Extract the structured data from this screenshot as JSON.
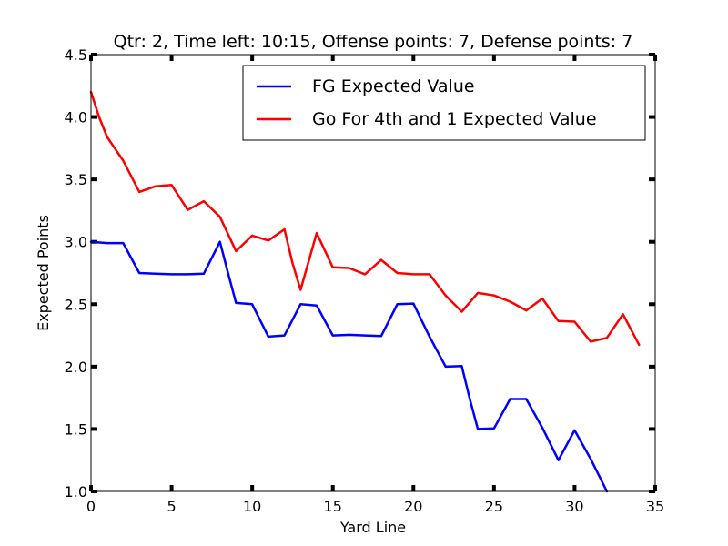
{
  "chart_data": {
    "type": "line",
    "title": "Qtr: 2, Time left: 10:15, Offense points: 7, Defense points: 7",
    "xlabel": "Yard Line",
    "ylabel": "Expected Points",
    "xlim": [
      0,
      35
    ],
    "ylim": [
      1.0,
      4.5
    ],
    "xticks": [
      0,
      5,
      10,
      15,
      20,
      25,
      30,
      35
    ],
    "yticks": [
      1.0,
      1.5,
      2.0,
      2.5,
      3.0,
      3.5,
      4.0,
      4.5
    ],
    "xtick_labels": [
      "0",
      "5",
      "10",
      "15",
      "20",
      "25",
      "30",
      "35"
    ],
    "ytick_labels": [
      "1.0",
      "1.5",
      "2.0",
      "2.5",
      "3.0",
      "3.5",
      "4.0",
      "4.5"
    ],
    "grid": false,
    "legend_position": "top-right",
    "series": [
      {
        "name": "FG Expected Value",
        "color": "#0000ff",
        "x": [
          0,
          1,
          2,
          3,
          4,
          5,
          6,
          7,
          8,
          8.5,
          9,
          10,
          11,
          12,
          13,
          14,
          15,
          16,
          17,
          18,
          19,
          20,
          21,
          22,
          23,
          23.5,
          24,
          25,
          26,
          27,
          28,
          29,
          30,
          31,
          32
        ],
        "y": [
          3.0,
          2.99,
          2.99,
          2.75,
          2.745,
          2.74,
          2.74,
          2.745,
          3.0,
          2.75,
          2.51,
          2.5,
          2.24,
          2.25,
          2.5,
          2.49,
          2.25,
          2.255,
          2.25,
          2.245,
          2.5,
          2.505,
          2.24,
          2.0,
          2.005,
          1.74,
          1.5,
          1.505,
          1.74,
          1.74,
          1.51,
          1.25,
          1.49,
          1.26,
          1.0
        ]
      },
      {
        "name": "Go For 4th and 1 Expected Value",
        "color": "#ff0000",
        "x": [
          0,
          0.5,
          1,
          2,
          3,
          4,
          5,
          6,
          7,
          8,
          9,
          10,
          11,
          12,
          12.5,
          13,
          14,
          15,
          16,
          17,
          18,
          19,
          20,
          21,
          22,
          23,
          24,
          25,
          26,
          27,
          28,
          29,
          30,
          31,
          32,
          33,
          34
        ],
        "y": [
          4.2,
          4.0,
          3.84,
          3.65,
          3.4,
          3.445,
          3.455,
          3.255,
          3.325,
          3.2,
          2.925,
          3.05,
          3.01,
          3.1,
          2.83,
          2.615,
          3.07,
          2.795,
          2.79,
          2.74,
          2.855,
          2.75,
          2.74,
          2.74,
          2.57,
          2.44,
          2.59,
          2.57,
          2.52,
          2.45,
          2.545,
          2.365,
          2.36,
          2.2,
          2.23,
          2.42,
          2.175
        ]
      }
    ]
  }
}
